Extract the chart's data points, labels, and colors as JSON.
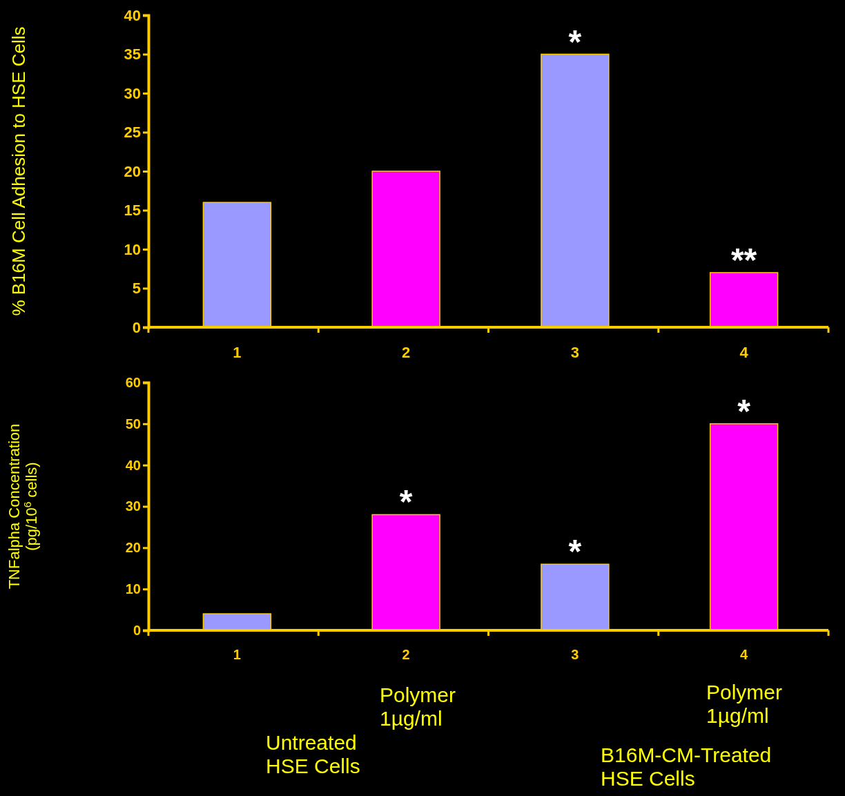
{
  "chart_data": [
    {
      "type": "bar",
      "ylabel": "% B16M Cell Adhesion to HSE Cells",
      "categories": [
        "1",
        "2",
        "3",
        "4"
      ],
      "values": [
        16,
        20,
        35,
        7
      ],
      "colors": [
        "#9999ff",
        "#ff00ff",
        "#9999ff",
        "#ff00ff"
      ],
      "ylim": [
        0,
        40
      ],
      "yticks": [
        0,
        5,
        10,
        15,
        20,
        25,
        30,
        35,
        40
      ],
      "annotations": [
        {
          "text": "*",
          "x": "3",
          "y": 35
        },
        {
          "text": "**",
          "x": "4",
          "y": 7
        }
      ]
    },
    {
      "type": "bar",
      "ylabel": "TNFalpha Concentration\n(pg/10$^{6}$ cells)",
      "categories": [
        "1",
        "2",
        "3",
        "4"
      ],
      "values": [
        4,
        28,
        16,
        50
      ],
      "colors": [
        "#9999ff",
        "#ff00ff",
        "#9999ff",
        "#ff00ff"
      ],
      "ylim": [
        0,
        60
      ],
      "yticks": [
        0,
        10,
        20,
        30,
        40,
        50,
        60
      ],
      "annotations": [
        {
          "text": "*",
          "x": "2",
          "y": 28
        },
        {
          "text": "*",
          "x": "3",
          "y": 16
        },
        {
          "text": "*",
          "x": "4",
          "y": 50
        },
        "Polymer\n1µg/ml",
        "Polymer\n1µg/ml",
        "Untreated\nHSE Cells",
        "B16M-CM-Treated\nHSE Cells"
      ]
    }
  ]
}
